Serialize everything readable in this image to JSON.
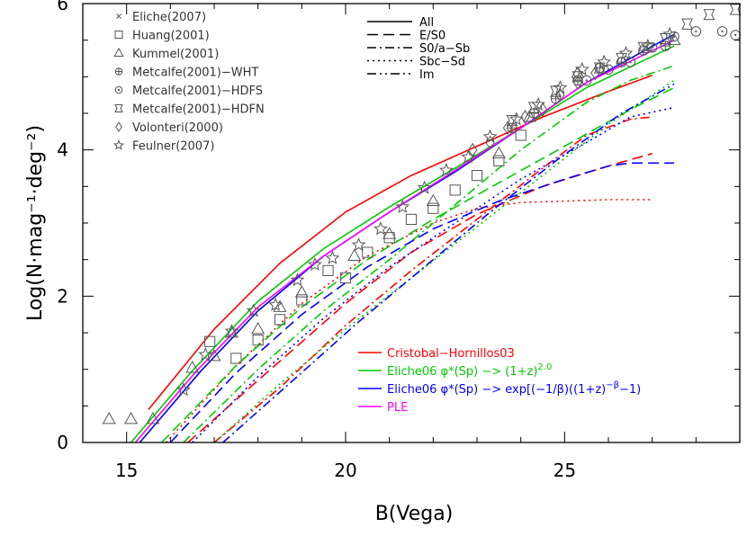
{
  "chart_data": {
    "type": "line",
    "xlabel": "B(Vega)",
    "ylabel": "Log(N·mag⁻¹·deg⁻²)",
    "xlim": [
      14,
      29
    ],
    "ylim": [
      0,
      6
    ],
    "xticks": [
      15,
      20,
      25
    ],
    "yticks": [
      0,
      2,
      4,
      6
    ],
    "grid": false,
    "data_legend": [
      {
        "label": "Eliche(2007)",
        "marker": "cross"
      },
      {
        "label": "Huang(2001)",
        "marker": "square"
      },
      {
        "label": "Kummel(2001)",
        "marker": "triangle"
      },
      {
        "label": "Metcalfe(2001)−WHT",
        "marker": "circle-plus"
      },
      {
        "label": "Metcalfe(2001)−HDFS",
        "marker": "circle-dot"
      },
      {
        "label": "Metcalfe(2001)−HDFN",
        "marker": "hourglass-square"
      },
      {
        "label": "Volonteri(2000)",
        "marker": "diamond"
      },
      {
        "label": "Feulner(2007)",
        "marker": "star"
      }
    ],
    "type_legend": [
      {
        "label": "All",
        "style": "solid"
      },
      {
        "label": "E/S0",
        "style": "dash"
      },
      {
        "label": "S0/a−Sb",
        "style": "dashdot"
      },
      {
        "label": "Sbc−Sd",
        "style": "dot"
      },
      {
        "label": "Im",
        "style": "dashdotdot"
      }
    ],
    "model_legend": [
      {
        "label": "Cristobal−Hornillos03",
        "color": "#ff0000"
      },
      {
        "label": "Eliche06 φ*(Sp) −> (1+z)",
        "sup": "2.0",
        "color": "#00cc00"
      },
      {
        "label": "Eliche06 φ*(Sp) −> exp[(−1/β)((1+z)",
        "sup": "−β",
        "tail": "−1)",
        "color": "#0000ff"
      },
      {
        "label": "PLE",
        "color": "#ff00ff"
      }
    ],
    "observations": [
      {
        "marker": "triangle",
        "points": [
          [
            14.6,
            0.32
          ],
          [
            15.1,
            0.32
          ],
          [
            15.6,
            0.32
          ],
          [
            16.5,
            1.02
          ],
          [
            17.0,
            1.18
          ],
          [
            17.4,
            1.5
          ],
          [
            18.0,
            1.55
          ],
          [
            18.5,
            1.85
          ],
          [
            19.0,
            2.05
          ],
          [
            20.2,
            2.55
          ],
          [
            21.0,
            2.85
          ],
          [
            22.0,
            3.3
          ],
          [
            23.5,
            3.95
          ],
          [
            24.2,
            4.45
          ],
          [
            25.3,
            5.05
          ],
          [
            27.5,
            5.5
          ]
        ]
      },
      {
        "marker": "square",
        "points": [
          [
            16.9,
            1.38
          ],
          [
            17.5,
            1.15
          ],
          [
            18.0,
            1.4
          ],
          [
            18.5,
            1.68
          ],
          [
            19.0,
            1.95
          ],
          [
            19.6,
            2.35
          ],
          [
            20.0,
            2.25
          ],
          [
            20.5,
            2.6
          ],
          [
            21.0,
            2.8
          ],
          [
            21.5,
            3.05
          ],
          [
            22.0,
            3.2
          ],
          [
            22.5,
            3.45
          ],
          [
            23.0,
            3.65
          ],
          [
            23.5,
            3.85
          ],
          [
            24.0,
            4.2
          ]
        ]
      },
      {
        "marker": "star",
        "points": [
          [
            16.3,
            0.72
          ],
          [
            16.8,
            1.2
          ],
          [
            17.4,
            1.52
          ],
          [
            17.9,
            1.8
          ],
          [
            18.4,
            1.88
          ],
          [
            18.9,
            2.22
          ],
          [
            19.3,
            2.43
          ],
          [
            19.7,
            2.52
          ],
          [
            20.3,
            2.7
          ],
          [
            20.8,
            2.92
          ],
          [
            21.3,
            3.22
          ],
          [
            21.8,
            3.48
          ],
          [
            22.3,
            3.72
          ],
          [
            22.8,
            3.9
          ],
          [
            23.3,
            4.18
          ],
          [
            23.9,
            4.42
          ],
          [
            24.4,
            4.62
          ],
          [
            24.9,
            4.85
          ],
          [
            25.4,
            5.1
          ],
          [
            25.9,
            5.2
          ],
          [
            26.4,
            5.32
          ],
          [
            26.9,
            5.42
          ],
          [
            27.4,
            5.58
          ]
        ]
      },
      {
        "marker": "circle-plus",
        "points": [
          [
            23.8,
            4.3
          ],
          [
            24.3,
            4.5
          ],
          [
            24.8,
            4.7
          ],
          [
            25.3,
            4.95
          ],
          [
            25.8,
            5.12
          ],
          [
            26.3,
            5.2
          ],
          [
            26.8,
            5.36
          ],
          [
            27.3,
            5.42
          ]
        ]
      },
      {
        "marker": "circle-dot",
        "points": [
          [
            25.5,
            4.95
          ],
          [
            26.0,
            5.1
          ],
          [
            26.5,
            5.2
          ],
          [
            27.0,
            5.4
          ],
          [
            27.5,
            5.55
          ],
          [
            28.0,
            5.62
          ],
          [
            28.6,
            5.62
          ],
          [
            28.9,
            5.57
          ]
        ]
      },
      {
        "marker": "hourglass-square",
        "points": [
          [
            23.8,
            4.4
          ],
          [
            24.3,
            4.58
          ],
          [
            24.8,
            4.8
          ],
          [
            25.3,
            5.0
          ],
          [
            25.8,
            5.12
          ],
          [
            26.3,
            5.25
          ],
          [
            26.8,
            5.4
          ],
          [
            27.3,
            5.52
          ],
          [
            27.8,
            5.72
          ],
          [
            28.3,
            5.85
          ],
          [
            28.9,
            5.92
          ]
        ]
      },
      {
        "marker": "diamond",
        "points": [
          [
            22.9,
            4.0
          ],
          [
            23.3,
            4.1
          ],
          [
            23.7,
            4.3
          ],
          [
            24.1,
            4.45
          ],
          [
            24.5,
            4.55
          ],
          [
            24.9,
            4.75
          ],
          [
            25.3,
            4.92
          ],
          [
            25.7,
            5.05
          ]
        ]
      }
    ],
    "series": [
      {
        "name": "Cristobal−Hornillos03 All",
        "color": "#ff0000",
        "style": "solid",
        "points": [
          [
            15.5,
            0.45
          ],
          [
            17,
            1.55
          ],
          [
            18.5,
            2.45
          ],
          [
            20,
            3.15
          ],
          [
            21.5,
            3.65
          ],
          [
            23,
            4.05
          ],
          [
            24.5,
            4.45
          ],
          [
            26,
            4.8
          ],
          [
            27,
            5.02
          ]
        ]
      },
      {
        "name": "Cristobal−Hornillos03 E/S0",
        "color": "#ff0000",
        "style": "dash",
        "points": [
          [
            16.4,
            0.0
          ],
          [
            18,
            0.85
          ],
          [
            20,
            1.9
          ],
          [
            21.5,
            2.6
          ],
          [
            23,
            3.12
          ],
          [
            24.5,
            3.5
          ],
          [
            26,
            3.78
          ],
          [
            27,
            3.95
          ]
        ]
      },
      {
        "name": "Cristobal−Hornillos03 S0/a−Sb",
        "color": "#ff0000",
        "style": "dashdot",
        "points": [
          [
            17.0,
            0.0
          ],
          [
            18.5,
            0.75
          ],
          [
            20,
            1.6
          ],
          [
            21.5,
            2.35
          ],
          [
            23,
            3.05
          ],
          [
            24.5,
            3.75
          ],
          [
            25.5,
            4.2
          ],
          [
            26.5,
            4.42
          ],
          [
            27,
            4.45
          ]
        ]
      },
      {
        "name": "Cristobal−Hornillos03 Sbc−Sd",
        "color": "#ff0000",
        "style": "dot",
        "points": [
          [
            15.9,
            0.0
          ],
          [
            17.5,
            1.05
          ],
          [
            19,
            1.9
          ],
          [
            20.5,
            2.55
          ],
          [
            22,
            3.0
          ],
          [
            23,
            3.2
          ],
          [
            24,
            3.28
          ],
          [
            25,
            3.3
          ],
          [
            26,
            3.32
          ],
          [
            27,
            3.32
          ]
        ]
      },
      {
        "name": "Eliche06 (1+z)^2.0 All",
        "color": "#00cc00",
        "style": "solid",
        "points": [
          [
            15.1,
            0.0
          ],
          [
            16.5,
            0.98
          ],
          [
            18,
            1.93
          ],
          [
            19.5,
            2.65
          ],
          [
            21,
            3.22
          ],
          [
            22.5,
            3.75
          ],
          [
            24,
            4.3
          ],
          [
            25.5,
            4.85
          ],
          [
            27.5,
            5.42
          ]
        ]
      },
      {
        "name": "Eliche06 (1+z)^2.0 E/S0",
        "color": "#00cc00",
        "style": "dash",
        "points": [
          [
            15.8,
            0.0
          ],
          [
            17.5,
            1.05
          ],
          [
            19,
            1.85
          ],
          [
            20.5,
            2.5
          ],
          [
            22,
            3.05
          ],
          [
            23.5,
            3.55
          ],
          [
            25,
            4.05
          ],
          [
            26.5,
            4.55
          ],
          [
            27.5,
            4.85
          ]
        ]
      },
      {
        "name": "Eliche06 (1+z)^2.0 S0/a−Sb",
        "color": "#00cc00",
        "style": "dashdot",
        "points": [
          [
            16.3,
            0.0
          ],
          [
            18,
            1.0
          ],
          [
            19.5,
            1.8
          ],
          [
            21,
            2.5
          ],
          [
            22.5,
            3.25
          ],
          [
            24,
            4.0
          ],
          [
            25.5,
            4.65
          ],
          [
            26.5,
            4.95
          ],
          [
            27.5,
            5.15
          ]
        ]
      },
      {
        "name": "Eliche06 (1+z)^2.0 Sbc−Sd",
        "color": "#00cc00",
        "style": "dot",
        "points": [
          [
            17.0,
            0.0
          ],
          [
            18.5,
            0.8
          ],
          [
            20,
            1.55
          ],
          [
            21.5,
            2.25
          ],
          [
            23,
            2.95
          ],
          [
            24.5,
            3.65
          ],
          [
            26,
            4.35
          ],
          [
            27.5,
            4.95
          ]
        ]
      },
      {
        "name": "Eliche06 exp All",
        "color": "#0000ff",
        "style": "solid",
        "points": [
          [
            15.3,
            0.0
          ],
          [
            16.7,
            0.98
          ],
          [
            18,
            1.8
          ],
          [
            19.5,
            2.55
          ],
          [
            21,
            3.15
          ],
          [
            22.5,
            3.7
          ],
          [
            24,
            4.3
          ],
          [
            25.5,
            4.92
          ],
          [
            27.5,
            5.58
          ]
        ]
      },
      {
        "name": "Eliche06 exp E/S0",
        "color": "#0000ff",
        "style": "dash",
        "points": [
          [
            16.0,
            0.0
          ],
          [
            17.5,
            0.95
          ],
          [
            19,
            1.75
          ],
          [
            20.5,
            2.4
          ],
          [
            22,
            2.92
          ],
          [
            23.5,
            3.3
          ],
          [
            25,
            3.6
          ],
          [
            26,
            3.78
          ],
          [
            26.5,
            3.82
          ],
          [
            27.5,
            3.82
          ]
        ]
      },
      {
        "name": "Eliche06 exp S0/a−Sb",
        "color": "#0000ff",
        "style": "dashdot",
        "points": [
          [
            17.2,
            0.0
          ],
          [
            18.8,
            0.85
          ],
          [
            20.3,
            1.65
          ],
          [
            21.8,
            2.4
          ],
          [
            23.3,
            3.15
          ],
          [
            24.8,
            3.85
          ],
          [
            26.3,
            4.5
          ],
          [
            27.5,
            4.9
          ]
        ]
      },
      {
        "name": "Eliche06 exp Sbc−Sd",
        "color": "#0000ff",
        "style": "dot",
        "points": [
          [
            16.5,
            0.0
          ],
          [
            18,
            0.9
          ],
          [
            19.5,
            1.7
          ],
          [
            21,
            2.4
          ],
          [
            22.5,
            3.0
          ],
          [
            24,
            3.6
          ],
          [
            25.5,
            4.1
          ],
          [
            26.5,
            4.45
          ],
          [
            27.5,
            4.58
          ]
        ]
      },
      {
        "name": "PLE All",
        "color": "#ff00ff",
        "style": "solid",
        "points": [
          [
            15.2,
            0.0
          ],
          [
            16.6,
            0.98
          ],
          [
            18,
            1.85
          ],
          [
            19.5,
            2.55
          ],
          [
            21,
            3.15
          ],
          [
            22.5,
            3.72
          ],
          [
            24,
            4.3
          ],
          [
            25.5,
            4.92
          ],
          [
            27.5,
            5.5
          ]
        ]
      }
    ]
  }
}
